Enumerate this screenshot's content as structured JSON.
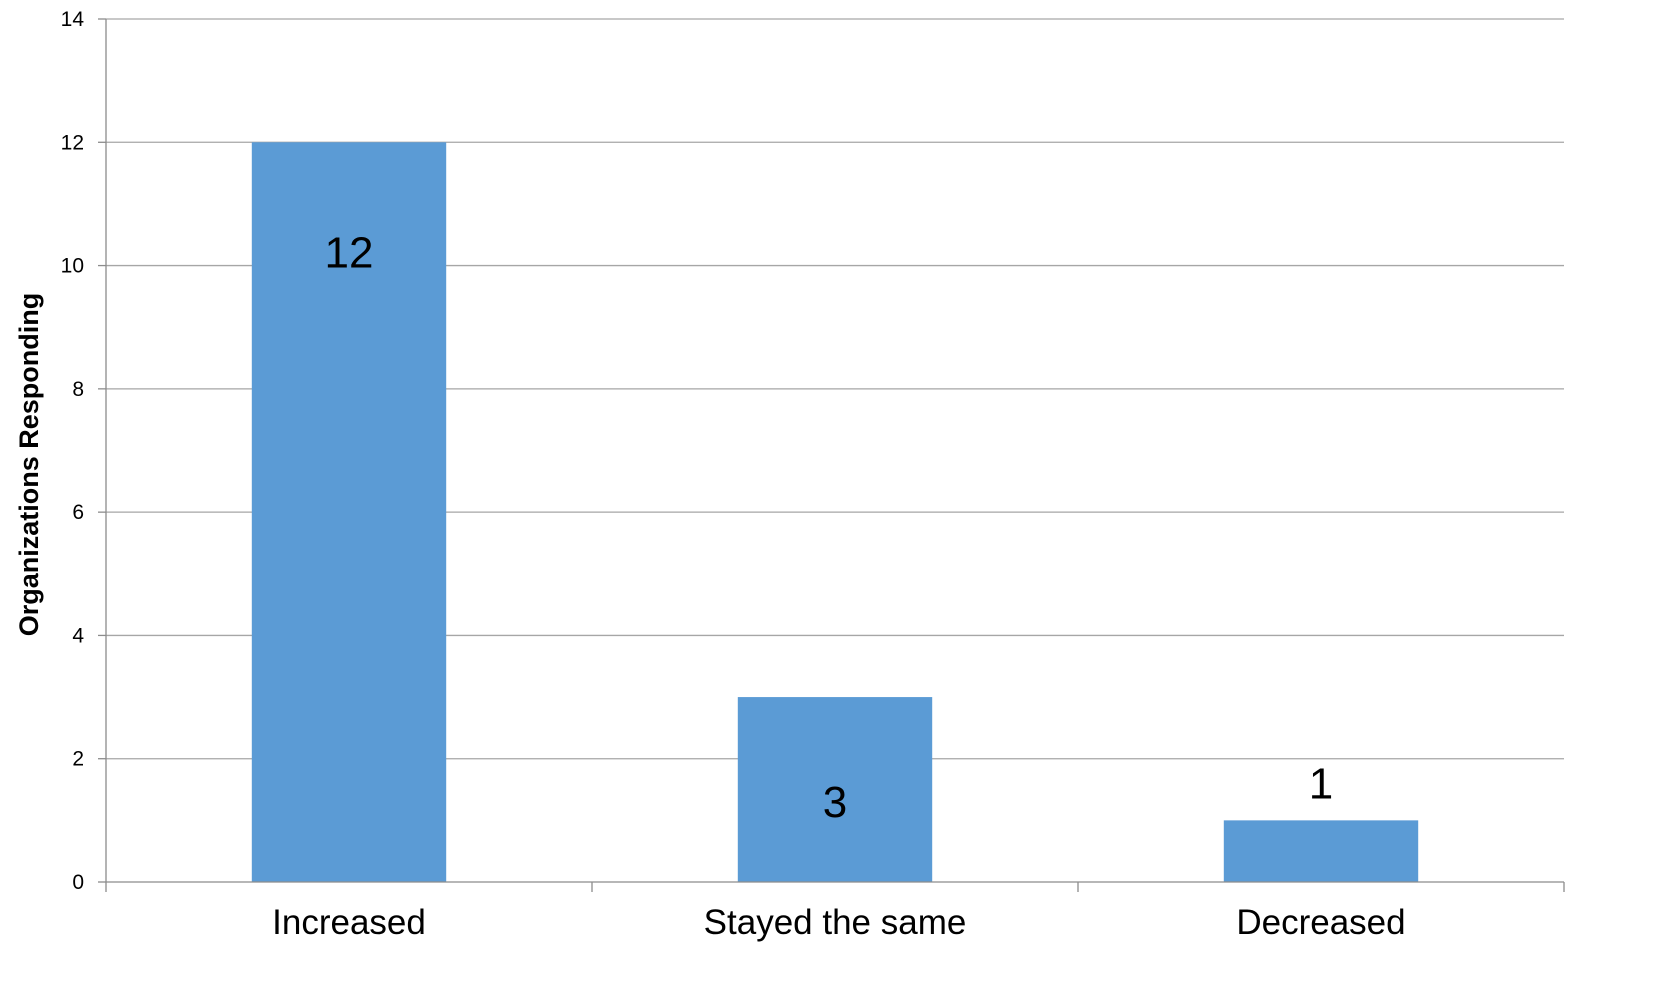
{
  "chart_data": {
    "type": "bar",
    "categories": [
      "Increased",
      "Stayed the same",
      "Decreased"
    ],
    "values": [
      12,
      3,
      1
    ],
    "data_labels": [
      "12",
      "3",
      "1"
    ],
    "title": "",
    "xlabel": "",
    "ylabel": "Organizations Responding",
    "ylim": [
      0,
      14
    ],
    "yticks": [
      0,
      2,
      4,
      6,
      8,
      10,
      12,
      14
    ],
    "grid": true,
    "legend": "none",
    "bar_color": "#5b9bd5"
  }
}
